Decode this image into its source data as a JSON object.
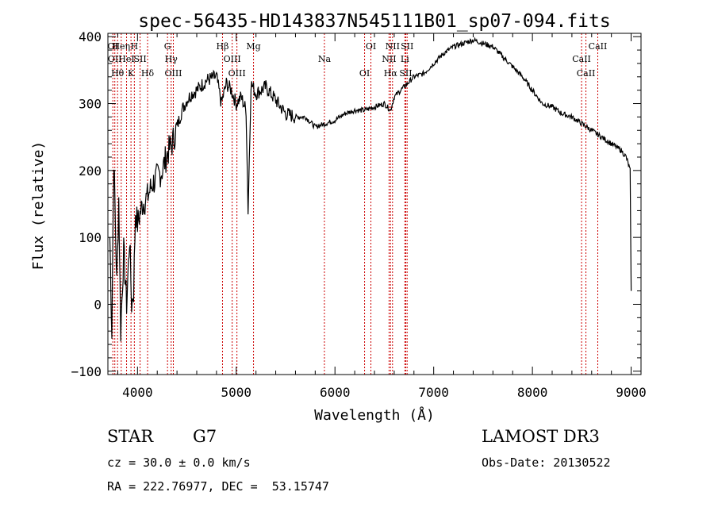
{
  "chart_data": {
    "type": "line",
    "title": "spec-56435-HD143837N545111B01_sp07-094.fits",
    "xlabel": "Wavelength (Å)",
    "ylabel": "Flux (relative)",
    "xlim": [
      3700,
      9100
    ],
    "ylim": [
      -105,
      405
    ],
    "xticks": [
      4000,
      5000,
      6000,
      7000,
      8000,
      9000
    ],
    "yticks": [
      -100,
      0,
      100,
      200,
      300,
      400
    ],
    "grid": false,
    "line_color": "#000000",
    "marker_color": "#cc0000",
    "spectrum": {
      "x": [
        3720,
        3740,
        3760,
        3790,
        3810,
        3830,
        3860,
        3890,
        3920,
        3940,
        3960,
        3980,
        4000,
        4050,
        4100,
        4150,
        4200,
        4250,
        4300,
        4350,
        4400,
        4450,
        4500,
        4550,
        4600,
        4700,
        4800,
        4850,
        4900,
        4950,
        5000,
        5050,
        5100,
        5120,
        5150,
        5200,
        5300,
        5400,
        5500,
        5600,
        5700,
        5800,
        5900,
        6000,
        6100,
        6200,
        6300,
        6400,
        6500,
        6563,
        6600,
        6700,
        6800,
        6900,
        7000,
        7100,
        7200,
        7300,
        7400,
        7500,
        7600,
        7700,
        7800,
        7900,
        8000,
        8100,
        8200,
        8300,
        8400,
        8500,
        8600,
        8700,
        8800,
        8900,
        8950,
        8990,
        9000
      ],
      "y": [
        100,
        -40,
        220,
        30,
        160,
        -40,
        80,
        0,
        100,
        0,
        20,
        140,
        120,
        150,
        160,
        180,
        190,
        200,
        225,
        240,
        265,
        290,
        305,
        315,
        320,
        335,
        340,
        300,
        330,
        320,
        300,
        310,
        290,
        140,
        330,
        315,
        325,
        305,
        285,
        280,
        280,
        265,
        270,
        275,
        285,
        290,
        290,
        295,
        300,
        290,
        310,
        325,
        340,
        345,
        360,
        375,
        385,
        390,
        395,
        390,
        385,
        370,
        355,
        340,
        320,
        300,
        295,
        285,
        280,
        270,
        260,
        250,
        240,
        230,
        220,
        200,
        20
      ]
    },
    "lines": [
      {
        "x": 3750,
        "label": "OI"
      },
      {
        "x": 3770,
        "label": "OII"
      },
      {
        "x": 3798,
        "label": "Hθ"
      },
      {
        "x": 3835,
        "label": "Heη"
      },
      {
        "x": 3889,
        "label": "HeI"
      },
      {
        "x": 3934,
        "label": "K"
      },
      {
        "x": 3968,
        "label": "H"
      },
      {
        "x": 4026,
        "label": "SII"
      },
      {
        "x": 4102,
        "label": "Hδ"
      },
      {
        "x": 4304,
        "label": "G"
      },
      {
        "x": 4341,
        "label": "Hγ"
      },
      {
        "x": 4363,
        "label": "OIII"
      },
      {
        "x": 4861,
        "label": "Hβ"
      },
      {
        "x": 4959,
        "label": "OIII"
      },
      {
        "x": 5007,
        "label": "OIII"
      },
      {
        "x": 5175,
        "label": "Mg"
      },
      {
        "x": 5893,
        "label": "Na"
      },
      {
        "x": 6300,
        "label": "OI"
      },
      {
        "x": 6364,
        "label": "OI"
      },
      {
        "x": 6548,
        "label": "NII"
      },
      {
        "x": 6563,
        "label": "Hα"
      },
      {
        "x": 6583,
        "label": "NII"
      },
      {
        "x": 6708,
        "label": "Li"
      },
      {
        "x": 6717,
        "label": "SII"
      },
      {
        "x": 6731,
        "label": "SII"
      },
      {
        "x": 8498,
        "label": "CaII"
      },
      {
        "x": 8542,
        "label": "CaII"
      },
      {
        "x": 8662,
        "label": "CaII"
      }
    ]
  },
  "info": {
    "class": "STAR",
    "subclass": "G7",
    "survey": "LAMOST DR3",
    "redshift": "cz = 30.0 ± 0.0 km/s",
    "obs_date": "Obs-Date: 20130522",
    "coords": "RA = 222.76977, DEC =  53.15747"
  }
}
